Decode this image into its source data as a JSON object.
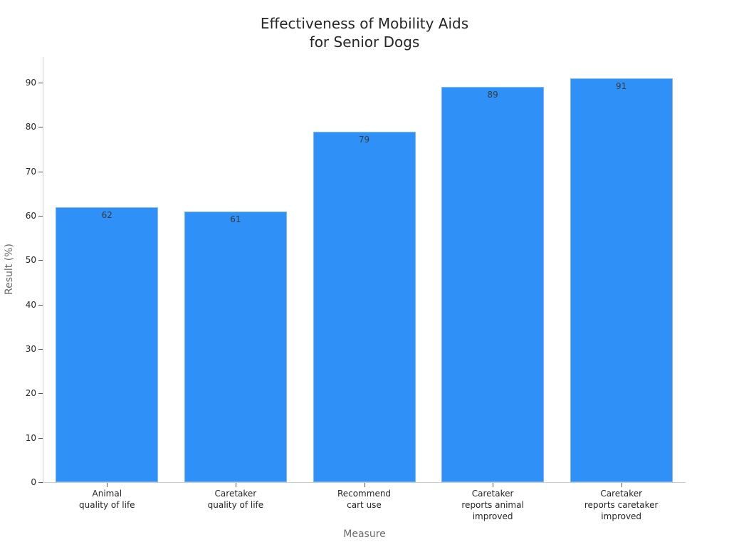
{
  "chart_data": {
    "type": "bar",
    "title": "Effectiveness of Mobility Aids for Senior Dogs",
    "title_lines": [
      "Effectiveness of Mobility Aids",
      "for Senior Dogs"
    ],
    "xlabel": "Measure",
    "ylabel": "Result (%)",
    "categories": [
      "Animal quality of life",
      "Caretaker quality of life",
      "Recommend cart use",
      "Caretaker reports animal improved",
      "Caretaker reports caretaker improved"
    ],
    "category_lines": [
      [
        "Animal",
        "quality of life"
      ],
      [
        "Caretaker",
        "quality of life"
      ],
      [
        "Recommend",
        "cart use"
      ],
      [
        "Caretaker",
        "reports animal",
        "improved"
      ],
      [
        "Caretaker",
        "reports caretaker",
        "improved"
      ]
    ],
    "values": [
      62,
      61,
      79,
      89,
      91
    ],
    "data_labels": [
      "62",
      "61",
      "79",
      "89",
      "91"
    ],
    "ylim": [
      0,
      95
    ],
    "yticks": [
      0,
      10,
      20,
      30,
      40,
      50,
      60,
      70,
      80,
      90
    ],
    "grid": false,
    "legend": null,
    "colors": {
      "bar": "#2f91f7",
      "bar_edge": "#7fb9f5",
      "axis": "#cccccc",
      "text": "#262626",
      "axis_label": "#6b6b6b"
    }
  }
}
